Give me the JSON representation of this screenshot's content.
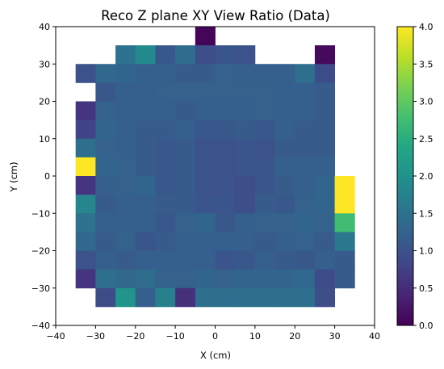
{
  "chart_data": {
    "type": "heatmap",
    "title": "Reco Z plane XY View Ratio (Data)",
    "xlabel": "X (cm)",
    "ylabel": "Y (cm)",
    "xlim": [
      -40,
      40
    ],
    "ylim": [
      -40,
      40
    ],
    "x_ticks": [
      "−40",
      "−30",
      "−20",
      "−10",
      "0",
      "10",
      "20",
      "30",
      "40"
    ],
    "y_ticks": [
      "−40",
      "−30",
      "−20",
      "−10",
      "0",
      "10",
      "20",
      "30",
      "40"
    ],
    "bin_width": 5,
    "x_bin_edges": [
      -35,
      -30,
      -25,
      -20,
      -15,
      -10,
      -5,
      0,
      5,
      10,
      15,
      20,
      25,
      30,
      35
    ],
    "y_bin_edges": [
      -35,
      -30,
      -25,
      -20,
      -15,
      -10,
      -5,
      0,
      5,
      10,
      15,
      20,
      25,
      30,
      35,
      40
    ],
    "colormap": "viridis",
    "color_range": [
      0.0,
      4.0
    ],
    "colorbar_ticks": [
      "0.0",
      "0.5",
      "1.0",
      "1.5",
      "2.0",
      "2.5",
      "3.0",
      "3.5",
      "4.0"
    ],
    "grid": false,
    "values_note": "rows ordered from top (y 35 to 40) to bottom (y -35 to -30); columns from x -35 to 35; null = empty bin",
    "values": [
      [
        null,
        null,
        null,
        null,
        null,
        null,
        0.05,
        null,
        null,
        null,
        null,
        null,
        null,
        null
      ],
      [
        null,
        null,
        1.5,
        1.9,
        1.1,
        1.4,
        0.95,
        1.05,
        1.0,
        null,
        null,
        null,
        0.1,
        null
      ],
      [
        1.0,
        1.35,
        1.3,
        1.2,
        1.2,
        1.15,
        1.15,
        1.25,
        1.2,
        1.2,
        1.2,
        1.45,
        0.9,
        null
      ],
      [
        null,
        1.1,
        1.2,
        1.2,
        1.25,
        1.25,
        1.25,
        1.25,
        1.25,
        1.25,
        1.2,
        1.2,
        1.15,
        null
      ],
      [
        0.6,
        1.25,
        1.2,
        1.2,
        1.2,
        1.15,
        1.2,
        1.2,
        1.2,
        1.25,
        1.2,
        1.2,
        1.15,
        null
      ],
      [
        0.8,
        1.3,
        1.2,
        1.15,
        1.15,
        1.2,
        1.1,
        1.1,
        1.15,
        1.1,
        1.2,
        1.15,
        1.15,
        null
      ],
      [
        1.45,
        1.25,
        1.2,
        1.15,
        1.1,
        1.15,
        1.0,
        1.0,
        1.05,
        1.0,
        1.15,
        1.15,
        1.15,
        null
      ],
      [
        4.0,
        1.3,
        1.25,
        1.15,
        1.1,
        1.15,
        1.0,
        1.0,
        1.05,
        1.05,
        1.2,
        1.2,
        1.2,
        null
      ],
      [
        0.6,
        1.2,
        1.25,
        1.3,
        1.1,
        1.15,
        1.0,
        1.0,
        0.95,
        1.05,
        1.15,
        1.2,
        1.3,
        4.0
      ],
      [
        1.8,
        1.15,
        1.2,
        1.2,
        1.15,
        1.15,
        1.05,
        1.05,
        0.95,
        1.15,
        1.1,
        1.25,
        1.3,
        4.0
      ],
      [
        1.5,
        1.2,
        1.2,
        1.2,
        1.1,
        1.25,
        1.3,
        1.1,
        1.2,
        1.25,
        1.25,
        1.3,
        1.25,
        2.75
      ],
      [
        1.35,
        1.15,
        1.25,
        1.05,
        1.15,
        1.2,
        1.2,
        1.2,
        1.2,
        1.15,
        1.2,
        1.25,
        1.15,
        1.6
      ],
      [
        1.0,
        1.2,
        1.15,
        1.2,
        1.2,
        1.2,
        1.2,
        1.05,
        1.1,
        1.2,
        1.15,
        1.1,
        1.2,
        1.15
      ],
      [
        0.6,
        1.45,
        1.35,
        1.4,
        1.25,
        1.25,
        1.3,
        1.25,
        1.3,
        1.3,
        1.3,
        1.35,
        0.9,
        1.15
      ],
      [
        null,
        0.9,
        2.05,
        1.2,
        1.75,
        0.55,
        1.45,
        1.45,
        1.45,
        1.45,
        1.45,
        1.45,
        0.95,
        null
      ]
    ]
  }
}
